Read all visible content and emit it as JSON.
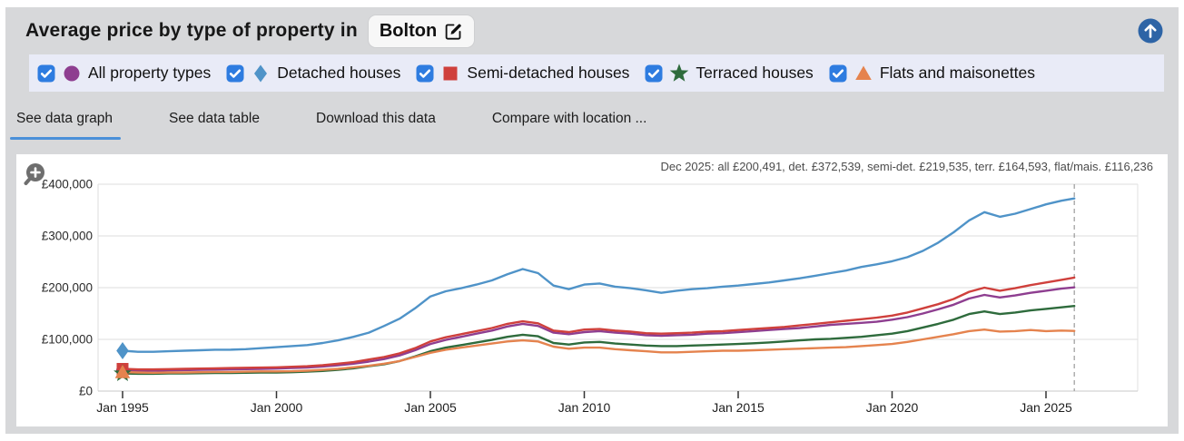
{
  "colors": {
    "accent_blue": "#4a90d9",
    "checkbox_blue": "#2e7ce0",
    "up_button_blue": "#2d64a6",
    "widget_bg": "#d7d8da",
    "legend_bg": "#e9ebf7",
    "line_all": "#8e3e90",
    "line_detached": "#4f93c8",
    "line_semi": "#cf403c",
    "line_terraced": "#2e6b3c",
    "line_flats": "#e5834e"
  },
  "header": {
    "title": "Average price by type of property in",
    "location": "Bolton"
  },
  "legend": {
    "items": [
      {
        "label": "All property types",
        "marker": "circle",
        "color": "#8e3e90",
        "checked": true
      },
      {
        "label": "Detached houses",
        "marker": "diamond",
        "color": "#4f93c8",
        "checked": true
      },
      {
        "label": "Semi-detached houses",
        "marker": "square",
        "color": "#cf403c",
        "checked": true
      },
      {
        "label": "Terraced houses",
        "marker": "star",
        "color": "#2e6b3c",
        "checked": true
      },
      {
        "label": "Flats and maisonettes",
        "marker": "triangle",
        "color": "#e5834e",
        "checked": true
      }
    ]
  },
  "tabs": {
    "active_index": 0,
    "items": [
      {
        "label": "See data graph"
      },
      {
        "label": "See data table"
      },
      {
        "label": "Download this data"
      },
      {
        "label": "Compare with location ..."
      }
    ]
  },
  "chart_data": {
    "type": "line",
    "annotation": "Dec 2025: all £200,491, det. £372,539, semi-det. £219,535, terr. £164,593, flat/mais. £116,236",
    "latest": {
      "date": "Dec 2025",
      "all_property_types": 200491,
      "detached": 372539,
      "semi_detached": 219535,
      "terraced": 164593,
      "flats_maisonettes": 116236
    },
    "ylim": [
      0,
      400000
    ],
    "xlim": [
      1994.2,
      2028.0
    ],
    "grid": true,
    "end_marker_x": 2025.92,
    "y_ticks": [
      {
        "value": 0,
        "label": "£0"
      },
      {
        "value": 100000,
        "label": "£100,000"
      },
      {
        "value": 200000,
        "label": "£200,000"
      },
      {
        "value": 300000,
        "label": "£300,000"
      },
      {
        "value": 400000,
        "label": "£400,000"
      }
    ],
    "x_ticks": [
      {
        "value": 1995,
        "label": "Jan 1995"
      },
      {
        "value": 2000,
        "label": "Jan 2000"
      },
      {
        "value": 2005,
        "label": "Jan 2005"
      },
      {
        "value": 2010,
        "label": "Jan 2010"
      },
      {
        "value": 2015,
        "label": "Jan 2015"
      },
      {
        "value": 2020,
        "label": "Jan 2020"
      },
      {
        "value": 2025,
        "label": "Jan 2025"
      }
    ],
    "x": [
      1995,
      1995.5,
      1996,
      1996.5,
      1997,
      1997.5,
      1998,
      1998.5,
      1999,
      1999.5,
      2000,
      2000.5,
      2001,
      2001.5,
      2002,
      2002.5,
      2003,
      2003.5,
      2004,
      2004.5,
      2005,
      2005.5,
      2006,
      2006.5,
      2007,
      2007.5,
      2008,
      2008.5,
      2009,
      2009.5,
      2010,
      2010.5,
      2011,
      2011.5,
      2012,
      2012.5,
      2013,
      2013.5,
      2014,
      2014.5,
      2015,
      2015.5,
      2016,
      2016.5,
      2017,
      2017.5,
      2018,
      2018.5,
      2019,
      2019.5,
      2020,
      2020.5,
      2021,
      2021.5,
      2022,
      2022.5,
      2023,
      2023.5,
      2024,
      2024.5,
      2025,
      2025.5,
      2025.92
    ],
    "series": [
      {
        "name": "All property types",
        "color": "#8e3e90",
        "marker": "circle",
        "values": [
          40000,
          39500,
          39500,
          40000,
          40500,
          41000,
          41500,
          42000,
          42500,
          43000,
          43500,
          44500,
          45500,
          47500,
          50000,
          53000,
          57000,
          62000,
          69000,
          79000,
          91000,
          99000,
          105000,
          111000,
          117000,
          125000,
          130000,
          126000,
          113000,
          110000,
          114000,
          116000,
          113000,
          111000,
          108000,
          107000,
          108000,
          109000,
          111000,
          112000,
          114000,
          116000,
          118000,
          120000,
          122000,
          125000,
          128000,
          130000,
          132000,
          134000,
          138000,
          143000,
          150000,
          158000,
          167000,
          179000,
          186000,
          181000,
          185000,
          190000,
          194000,
          198000,
          200491
        ]
      },
      {
        "name": "Detached houses",
        "color": "#4f93c8",
        "marker": "diamond",
        "values": [
          78000,
          76000,
          76000,
          77000,
          78000,
          79000,
          80000,
          80000,
          81000,
          83000,
          85000,
          87000,
          89000,
          93000,
          98000,
          105000,
          113000,
          126000,
          140000,
          160000,
          183000,
          193000,
          199000,
          206000,
          214000,
          226000,
          236000,
          228000,
          204000,
          197000,
          206000,
          208000,
          202000,
          199000,
          195000,
          190000,
          194000,
          197000,
          199000,
          202000,
          204000,
          207000,
          210000,
          214000,
          218000,
          223000,
          228000,
          233000,
          240000,
          245000,
          251000,
          259000,
          271000,
          287000,
          307000,
          330000,
          346000,
          337000,
          343000,
          352000,
          361000,
          368000,
          372539
        ]
      },
      {
        "name": "Semi-detached houses",
        "color": "#cf403c",
        "marker": "square",
        "values": [
          43000,
          42000,
          42000,
          42500,
          43000,
          43500,
          44000,
          44500,
          45000,
          45500,
          46000,
          47000,
          48000,
          50000,
          53000,
          56000,
          61000,
          66000,
          73000,
          83000,
          96000,
          104000,
          110000,
          116000,
          122000,
          130000,
          135000,
          131000,
          117000,
          114000,
          119000,
          120000,
          117000,
          115000,
          112000,
          111000,
          112000,
          113000,
          115000,
          116000,
          118000,
          120000,
          122000,
          124000,
          127000,
          130000,
          133000,
          136000,
          139000,
          142000,
          146000,
          152000,
          160000,
          168000,
          178000,
          192000,
          200000,
          194000,
          199000,
          205000,
          210000,
          215000,
          219535
        ]
      },
      {
        "name": "Terraced houses",
        "color": "#2e6b3c",
        "marker": "star",
        "values": [
          34000,
          33500,
          33500,
          34000,
          34000,
          34500,
          35000,
          35000,
          35500,
          36000,
          36000,
          36500,
          37500,
          39000,
          41000,
          44000,
          48000,
          52000,
          58000,
          67000,
          77000,
          84000,
          89000,
          94000,
          99000,
          105000,
          109000,
          106000,
          93000,
          90000,
          94000,
          95000,
          92000,
          90000,
          88000,
          87000,
          87000,
          88000,
          89000,
          90000,
          91000,
          92500,
          94000,
          96000,
          98000,
          100000,
          101000,
          103000,
          105000,
          108000,
          111000,
          116000,
          123000,
          130000,
          138000,
          149000,
          154000,
          149000,
          152000,
          156000,
          159000,
          162000,
          164593
        ]
      },
      {
        "name": "Flats and maisonettes",
        "color": "#e5834e",
        "marker": "triangle",
        "values": [
          37000,
          36000,
          35500,
          36000,
          36000,
          36500,
          37000,
          37000,
          37500,
          38000,
          38000,
          38500,
          39500,
          41000,
          43000,
          46000,
          49000,
          53000,
          58000,
          66000,
          74000,
          80000,
          84000,
          88000,
          92000,
          96000,
          98000,
          96000,
          86000,
          82000,
          84000,
          84000,
          81000,
          79000,
          77000,
          75000,
          75000,
          76000,
          77000,
          78000,
          78000,
          79000,
          80000,
          81000,
          82000,
          83000,
          84000,
          85000,
          87000,
          89000,
          91000,
          95000,
          100000,
          105000,
          110000,
          116000,
          119000,
          115000,
          116000,
          118000,
          116000,
          117000,
          116236
        ]
      }
    ]
  }
}
